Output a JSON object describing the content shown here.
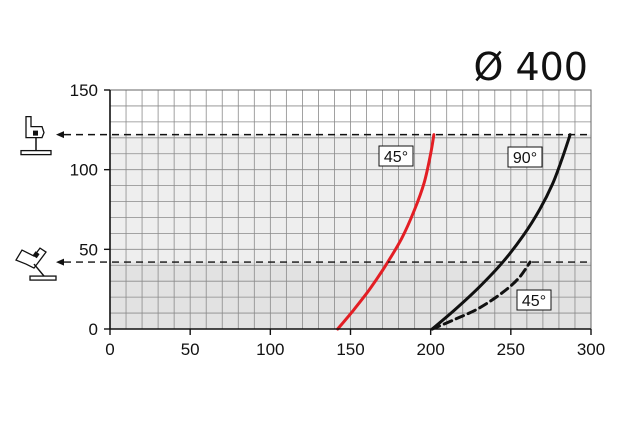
{
  "chart_data": {
    "type": "line",
    "title": "Ø 400",
    "xlabel": "",
    "ylabel": "",
    "xlim": [
      0,
      300
    ],
    "ylim": [
      0,
      150
    ],
    "x_ticks": [
      "0",
      "50",
      "100",
      "150",
      "200",
      "250",
      "300"
    ],
    "y_ticks": [
      "0",
      "50",
      "100",
      "150"
    ],
    "grid": true,
    "grid_minor_x": 10,
    "grid_minor_y": 10,
    "reference_lines_y": [
      42,
      122
    ],
    "series": [
      {
        "name": "45°",
        "color": "#e31e24",
        "style": "solid",
        "x": [
          142,
          152,
          162,
          172,
          182,
          190,
          196,
          200,
          202
        ],
        "y": [
          0,
          12,
          25,
          40,
          57,
          75,
          92,
          110,
          122
        ]
      },
      {
        "name": "90°",
        "color": "#111111",
        "style": "solid",
        "x": [
          201,
          215,
          230,
          245,
          258,
          268,
          276,
          282,
          287
        ],
        "y": [
          0,
          12,
          26,
          42,
          59,
          75,
          91,
          107,
          122
        ]
      },
      {
        "name": "45°",
        "color": "#111111",
        "style": "dashed",
        "x": [
          201,
          215,
          230,
          245,
          255,
          262
        ],
        "y": [
          0,
          6,
          13,
          23,
          32,
          42
        ]
      }
    ],
    "icons": [
      "vertical-blade-machine-icon",
      "tilted-blade-machine-icon"
    ]
  }
}
